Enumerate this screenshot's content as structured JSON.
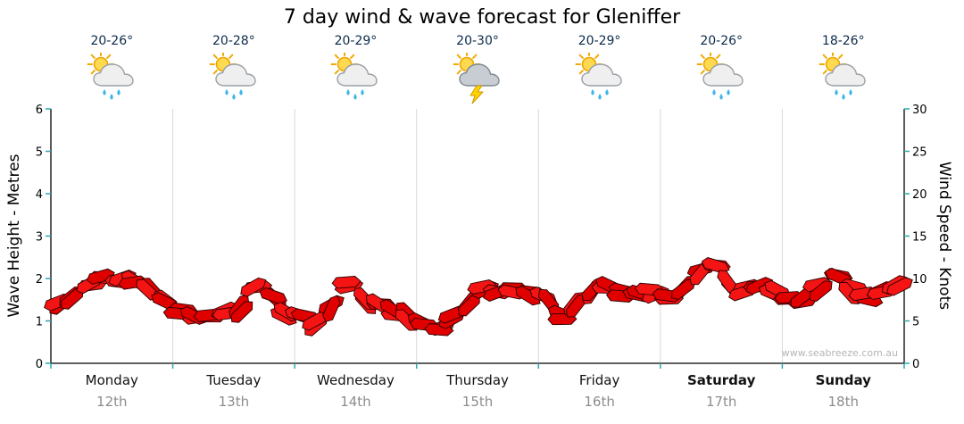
{
  "title": "7 day wind & wave forecast for Gleniffer",
  "watermark": "www.seabreeze.com.au",
  "left_axis": {
    "label": "Wave Height - Metres",
    "ticks": [
      0,
      1,
      2,
      3,
      4,
      5,
      6
    ]
  },
  "right_axis": {
    "label": "Wind Speed - Knots",
    "ticks": [
      0,
      5,
      10,
      15,
      20,
      25,
      30
    ]
  },
  "days": [
    {
      "name": "Monday",
      "date": "12th",
      "temp": "20-26°",
      "icon": "sun-cloud-showers",
      "bold": false
    },
    {
      "name": "Tuesday",
      "date": "13th",
      "temp": "20-28°",
      "icon": "sun-cloud-showers",
      "bold": false
    },
    {
      "name": "Wednesday",
      "date": "14th",
      "temp": "20-29°",
      "icon": "sun-cloud-showers",
      "bold": false
    },
    {
      "name": "Thursday",
      "date": "15th",
      "temp": "20-30°",
      "icon": "storm",
      "bold": false
    },
    {
      "name": "Friday",
      "date": "16th",
      "temp": "20-29°",
      "icon": "sun-cloud-showers",
      "bold": false
    },
    {
      "name": "Saturday",
      "date": "17th",
      "temp": "20-26°",
      "icon": "sun-cloud-showers",
      "bold": true
    },
    {
      "name": "Sunday",
      "date": "18th",
      "temp": "18-26°",
      "icon": "sun-cloud-showers",
      "bold": true
    }
  ],
  "colors": {
    "band_red": "#e00000",
    "band_red_bright": "#f41414",
    "band_outline": "#2b0000",
    "tick_teal": "#2ba8ad",
    "day_separator": "#d9d9d9",
    "axis_black": "#000000",
    "watermark_gray": "#b5b5b5"
  },
  "chart_data": {
    "type": "line",
    "title": "7 day wind & wave forecast for Gleniffer",
    "categories": [
      "Monday 12th",
      "Tuesday 13th",
      "Wednesday 14th",
      "Thursday 15th",
      "Friday 16th",
      "Saturday 17th",
      "Sunday 18th"
    ],
    "points_per_day": 8,
    "xlabel": "",
    "ylabel_left": "Wave Height - Metres",
    "ylabel_right": "Wind Speed - Knots",
    "ylim_left_metres": [
      0,
      6
    ],
    "ylim_right_knots": [
      0,
      30
    ],
    "note": "wave_height_metres = wind_speed_knots / 5 (shared band)",
    "grid": "vertical-day-separators",
    "series": [
      {
        "name": "Wind Speed (knots)",
        "values": [
          7.0,
          7.8,
          9.3,
          10.0,
          9.6,
          9.8,
          8.6,
          7.0,
          6.3,
          5.6,
          5.5,
          6.0,
          6.3,
          9.0,
          8.0,
          6.0,
          5.3,
          4.8,
          6.8,
          9.2,
          7.5,
          6.6,
          6.0,
          5.5,
          4.6,
          4.0,
          5.6,
          7.2,
          8.6,
          8.2,
          8.8,
          8.0,
          7.5,
          5.5,
          6.6,
          8.5,
          8.8,
          8.2,
          8.0,
          8.5,
          8.0,
          9.2,
          10.6,
          11.2,
          9.2,
          8.6,
          9.0,
          8.6,
          7.6,
          7.5,
          9.0,
          10.0,
          8.6,
          7.8,
          8.8,
          9.2
        ]
      }
    ]
  }
}
